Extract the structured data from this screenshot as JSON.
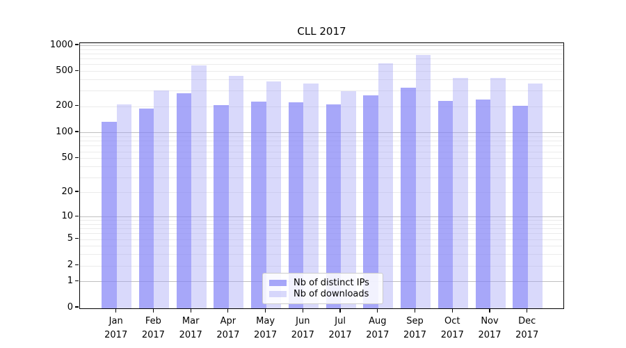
{
  "chart_data": {
    "type": "bar",
    "title": "CLL 2017",
    "categories": [
      "Jan 2017",
      "Feb 2017",
      "Mar 2017",
      "Apr 2017",
      "May 2017",
      "Jun 2017",
      "Jul 2017",
      "Aug 2017",
      "Sep 2017",
      "Oct 2017",
      "Nov 2017",
      "Dec 2017"
    ],
    "series": [
      {
        "name": "Nb of distinct IPs",
        "color": "rgba(130,130,247,0.70)",
        "values": [
          135,
          193,
          285,
          211,
          231,
          226,
          212,
          272,
          331,
          232,
          242,
          207
        ]
      },
      {
        "name": "Nb of downloads",
        "color": "rgba(160,160,245,0.40)",
        "values": [
          215,
          307,
          590,
          447,
          392,
          366,
          300,
          632,
          778,
          424,
          424,
          368
        ]
      }
    ],
    "yscale": "symlog",
    "ylim": [
      0,
      1000
    ],
    "yticks": [
      0,
      1,
      2,
      5,
      10,
      20,
      50,
      100,
      200,
      500,
      1000
    ],
    "grid": true,
    "legend_position": "lower center"
  },
  "colors": {
    "grid_major": "#c0c0c0",
    "grid_minor": "#ebebeb",
    "axis_spine": "#000000",
    "tick_text": "#000000",
    "background": "#ffffff",
    "legend_border": "#cccccc"
  }
}
